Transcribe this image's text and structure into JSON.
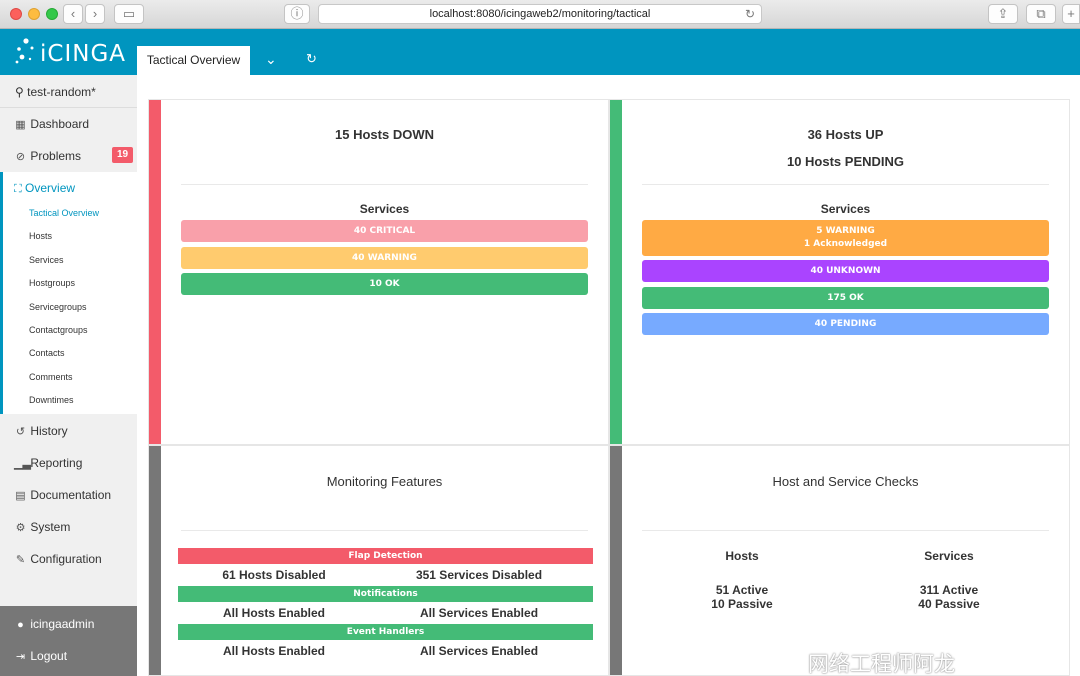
{
  "browser": {
    "url": "localhost:8080/icingaweb2/monitoring/tactical"
  },
  "header": {
    "logo": "iCINGA",
    "active_tab": "Tactical Overview"
  },
  "colors": {
    "brand": "#0095bf",
    "critical": "#f35b6a",
    "warning": "#ffaa44",
    "ok": "#44bb77",
    "unknown": "#aa44ff",
    "pending": "#77aaff",
    "neutral": "#777777"
  },
  "sidebar": {
    "search": "test-random*",
    "dashboard": "Dashboard",
    "problems": "Problems",
    "problems_count": "19",
    "overview": "Overview",
    "overview_items": [
      "Tactical Overview",
      "Hosts",
      "Services",
      "Hostgroups",
      "Servicegroups",
      "Contactgroups",
      "Contacts",
      "Comments",
      "Downtimes"
    ],
    "history": "History",
    "reporting": "Reporting",
    "documentation": "Documentation",
    "system": "System",
    "configuration": "Configuration",
    "user": "icingaadmin",
    "logout": "Logout"
  },
  "tiles": {
    "down": {
      "heading": "15 Hosts DOWN",
      "services_label": "Services",
      "critical": "40 CRITICAL",
      "warning": "40 WARNING",
      "ok": "10 OK"
    },
    "up": {
      "heading": "36 Hosts UP",
      "heading2": "10 Hosts PENDING",
      "services_label": "Services",
      "warning": "5 WARNING",
      "warning_ack": "1 Acknowledged",
      "unknown": "40 UNKNOWN",
      "ok": "175 OK",
      "pending": "40 PENDING"
    },
    "features": {
      "title": "Monitoring Features",
      "flap": "Flap Detection",
      "flap_hosts": "61 Hosts Disabled",
      "flap_services": "351 Services Disabled",
      "notifications": "Notifications",
      "notif_hosts": "All Hosts Enabled",
      "notif_services": "All Services Enabled",
      "event_handlers": "Event Handlers",
      "eh_hosts": "All Hosts Enabled",
      "eh_services": "All Services Enabled"
    },
    "checks": {
      "title": "Host and Service Checks",
      "hosts_label": "Hosts",
      "services_label": "Services",
      "hosts_active": "51 Active",
      "hosts_passive": "10 Passive",
      "services_active": "311 Active",
      "services_passive": "40 Passive"
    }
  },
  "watermark": "网络工程师阿龙"
}
